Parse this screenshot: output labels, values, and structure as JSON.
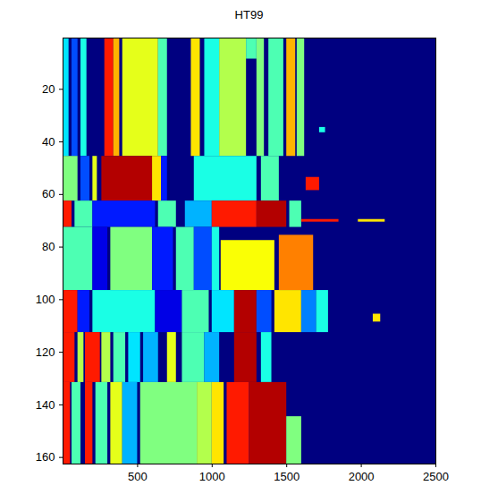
{
  "chart_data": {
    "type": "heatmap",
    "title": "HT99",
    "xlim": [
      0,
      2500
    ],
    "xticks": [
      500,
      1000,
      1500,
      2000,
      2500
    ],
    "ylim": [
      0.5,
      162.5
    ],
    "yticks": [
      20,
      40,
      60,
      80,
      100,
      120,
      140,
      160
    ],
    "zlim": [
      0,
      1
    ],
    "background_value": 0,
    "cells": [
      {
        "rows": [
          1,
          45
        ],
        "x": [
          0,
          40
        ],
        "value": 0.35
      },
      {
        "rows": [
          1,
          45
        ],
        "x": [
          60,
          100
        ],
        "value": 0.2
      },
      {
        "rows": [
          1,
          45
        ],
        "x": [
          120,
          160
        ],
        "value": 0.4
      },
      {
        "rows": [
          1,
          45
        ],
        "x": [
          280,
          340
        ],
        "value": 0.85
      },
      {
        "rows": [
          1,
          45
        ],
        "x": [
          340,
          380
        ],
        "value": 0.7
      },
      {
        "rows": [
          1,
          45
        ],
        "x": [
          400,
          640
        ],
        "value": 0.6
      },
      {
        "rows": [
          1,
          45
        ],
        "x": [
          640,
          700
        ],
        "value": 0.45
      },
      {
        "rows": [
          1,
          45
        ],
        "x": [
          860,
          920
        ],
        "value": 0.65
      },
      {
        "rows": [
          1,
          45
        ],
        "x": [
          950,
          1050
        ],
        "value": 0.4
      },
      {
        "rows": [
          1,
          45
        ],
        "x": [
          1050,
          1230
        ],
        "value": 0.55
      },
      {
        "rows": [
          1,
          45
        ],
        "x": [
          1300,
          1350
        ],
        "value": 0.5
      },
      {
        "rows": [
          1,
          45
        ],
        "x": [
          1380,
          1480
        ],
        "value": 0.45
      },
      {
        "rows": [
          1,
          45
        ],
        "x": [
          1500,
          1560
        ],
        "value": 0.7
      },
      {
        "rows": [
          1,
          45
        ],
        "x": [
          1570,
          1620
        ],
        "value": 0.5
      },
      {
        "rows": [
          1,
          8
        ],
        "x": [
          1230,
          1300
        ],
        "value": 0.45
      },
      {
        "rows": [
          35,
          36
        ],
        "x": [
          1720,
          1760
        ],
        "value": 0.4
      },
      {
        "rows": [
          46,
          62
        ],
        "x": [
          0,
          100
        ],
        "value": 0.5
      },
      {
        "rows": [
          46,
          62
        ],
        "x": [
          120,
          180
        ],
        "value": 0.2
      },
      {
        "rows": [
          46,
          62
        ],
        "x": [
          200,
          230
        ],
        "value": 0.6
      },
      {
        "rows": [
          46,
          62
        ],
        "x": [
          260,
          600
        ],
        "value": 0.95
      },
      {
        "rows": [
          46,
          62
        ],
        "x": [
          600,
          660
        ],
        "value": 0.65
      },
      {
        "rows": [
          46,
          62
        ],
        "x": [
          660,
          700
        ],
        "value": 0.15
      },
      {
        "rows": [
          46,
          62
        ],
        "x": [
          880,
          1300
        ],
        "value": 0.4
      },
      {
        "rows": [
          46,
          62
        ],
        "x": [
          1330,
          1450
        ],
        "value": 0.45
      },
      {
        "rows": [
          54,
          58
        ],
        "x": [
          1630,
          1720
        ],
        "value": 0.85
      },
      {
        "rows": [
          63,
          72
        ],
        "x": [
          0,
          60
        ],
        "value": 0.85
      },
      {
        "rows": [
          63,
          72
        ],
        "x": [
          80,
          200
        ],
        "value": 0.45
      },
      {
        "rows": [
          63,
          72
        ],
        "x": [
          200,
          620
        ],
        "value": 0.15
      },
      {
        "rows": [
          63,
          72
        ],
        "x": [
          640,
          760
        ],
        "value": 0.45
      },
      {
        "rows": [
          63,
          72
        ],
        "x": [
          820,
          1000
        ],
        "value": 0.3
      },
      {
        "rows": [
          63,
          72
        ],
        "x": [
          1000,
          1300
        ],
        "value": 0.85
      },
      {
        "rows": [
          63,
          72
        ],
        "x": [
          1300,
          1500
        ],
        "value": 0.95
      },
      {
        "rows": [
          63,
          72
        ],
        "x": [
          1520,
          1600
        ],
        "value": 0.45
      },
      {
        "rows": [
          70,
          70
        ],
        "x": [
          1600,
          1850
        ],
        "value": 0.85
      },
      {
        "rows": [
          70,
          70
        ],
        "x": [
          1980,
          2160
        ],
        "value": 0.65
      },
      {
        "rows": [
          73,
          96
        ],
        "x": [
          0,
          200
        ],
        "value": 0.45
      },
      {
        "rows": [
          73,
          96
        ],
        "x": [
          200,
          300
        ],
        "value": 0.1
      },
      {
        "rows": [
          73,
          96
        ],
        "x": [
          320,
          600
        ],
        "value": 0.5
      },
      {
        "rows": [
          73,
          96
        ],
        "x": [
          600,
          740
        ],
        "value": 0.15
      },
      {
        "rows": [
          73,
          96
        ],
        "x": [
          760,
          880
        ],
        "value": 0.45
      },
      {
        "rows": [
          73,
          96
        ],
        "x": [
          880,
          1000
        ],
        "value": 0.2
      },
      {
        "rows": [
          73,
          96
        ],
        "x": [
          1000,
          1050
        ],
        "value": 0.4
      },
      {
        "rows": [
          78,
          96
        ],
        "x": [
          1060,
          1420
        ],
        "value": 0.62
      },
      {
        "rows": [
          76,
          96
        ],
        "x": [
          1450,
          1680
        ],
        "value": 0.75
      },
      {
        "rows": [
          97,
          112
        ],
        "x": [
          0,
          100
        ],
        "value": 0.85
      },
      {
        "rows": [
          97,
          112
        ],
        "x": [
          100,
          180
        ],
        "value": 0.15
      },
      {
        "rows": [
          97,
          112
        ],
        "x": [
          200,
          620
        ],
        "value": 0.4
      },
      {
        "rows": [
          97,
          112
        ],
        "x": [
          620,
          800
        ],
        "value": 0.1
      },
      {
        "rows": [
          97,
          112
        ],
        "x": [
          800,
          980
        ],
        "value": 0.45
      },
      {
        "rows": [
          97,
          112
        ],
        "x": [
          1000,
          1150
        ],
        "value": 0.35
      },
      {
        "rows": [
          97,
          112
        ],
        "x": [
          1150,
          1300
        ],
        "value": 0.95
      },
      {
        "rows": [
          97,
          112
        ],
        "x": [
          1300,
          1400
        ],
        "value": 0.2
      },
      {
        "rows": [
          97,
          112
        ],
        "x": [
          1420,
          1600
        ],
        "value": 0.65
      },
      {
        "rows": [
          97,
          112
        ],
        "x": [
          1600,
          1700
        ],
        "value": 0.25
      },
      {
        "rows": [
          97,
          112
        ],
        "x": [
          1700,
          1780
        ],
        "value": 0.4
      },
      {
        "rows": [
          106,
          108
        ],
        "x": [
          2080,
          2130
        ],
        "value": 0.65
      },
      {
        "rows": [
          113,
          131
        ],
        "x": [
          0,
          80
        ],
        "value": 0.85
      },
      {
        "rows": [
          113,
          131
        ],
        "x": [
          100,
          140
        ],
        "value": 0.55
      },
      {
        "rows": [
          113,
          131
        ],
        "x": [
          150,
          250
        ],
        "value": 0.85
      },
      {
        "rows": [
          113,
          131
        ],
        "x": [
          260,
          320
        ],
        "value": 0.55
      },
      {
        "rows": [
          113,
          131
        ],
        "x": [
          340,
          420
        ],
        "value": 0.45
      },
      {
        "rows": [
          113,
          131
        ],
        "x": [
          440,
          520
        ],
        "value": 0.35
      },
      {
        "rows": [
          113,
          131
        ],
        "x": [
          540,
          640
        ],
        "value": 0.3
      },
      {
        "rows": [
          113,
          131
        ],
        "x": [
          700,
          760
        ],
        "value": 0.6
      },
      {
        "rows": [
          113,
          131
        ],
        "x": [
          800,
          950
        ],
        "value": 0.45
      },
      {
        "rows": [
          113,
          131
        ],
        "x": [
          950,
          1050
        ],
        "value": 0.3
      },
      {
        "rows": [
          113,
          131
        ],
        "x": [
          1150,
          1300
        ],
        "value": 0.95
      },
      {
        "rows": [
          113,
          131
        ],
        "x": [
          1330,
          1400
        ],
        "value": 0.4
      },
      {
        "rows": [
          132,
          162
        ],
        "x": [
          0,
          50
        ],
        "value": 0.85
      },
      {
        "rows": [
          132,
          162
        ],
        "x": [
          60,
          120
        ],
        "value": 0.45
      },
      {
        "rows": [
          132,
          162
        ],
        "x": [
          150,
          200
        ],
        "value": 0.85
      },
      {
        "rows": [
          132,
          162
        ],
        "x": [
          220,
          300
        ],
        "value": 0.45
      },
      {
        "rows": [
          132,
          162
        ],
        "x": [
          320,
          400
        ],
        "value": 0.6
      },
      {
        "rows": [
          132,
          162
        ],
        "x": [
          400,
          500
        ],
        "value": 0.3
      },
      {
        "rows": [
          132,
          162
        ],
        "x": [
          520,
          900
        ],
        "value": 0.5
      },
      {
        "rows": [
          132,
          162
        ],
        "x": [
          900,
          1000
        ],
        "value": 0.55
      },
      {
        "rows": [
          132,
          162
        ],
        "x": [
          1000,
          1080
        ],
        "value": 0.65
      },
      {
        "rows": [
          132,
          162
        ],
        "x": [
          1100,
          1250
        ],
        "value": 0.85
      },
      {
        "rows": [
          132,
          162
        ],
        "x": [
          1250,
          1500
        ],
        "value": 0.95
      },
      {
        "rows": [
          145,
          162
        ],
        "x": [
          1500,
          1600
        ],
        "value": 0.5
      }
    ]
  }
}
